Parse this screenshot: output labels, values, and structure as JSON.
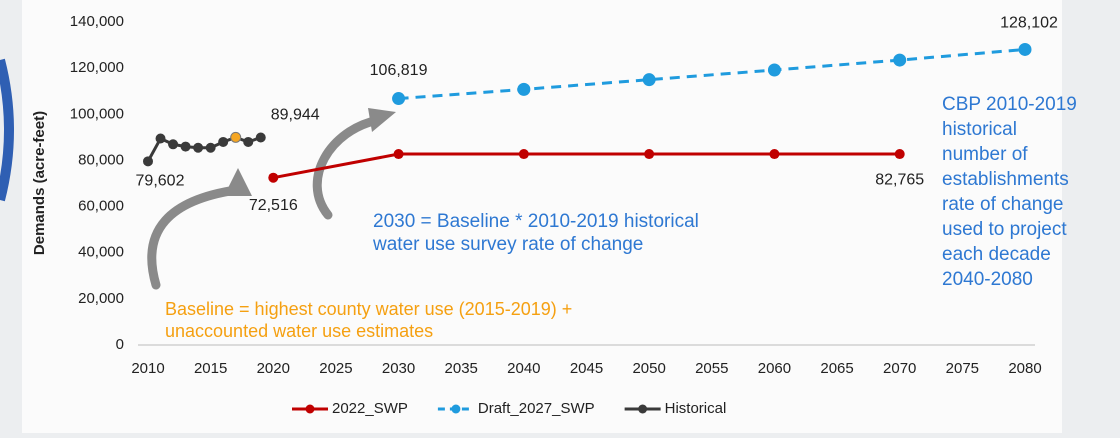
{
  "chart_data": {
    "type": "line",
    "y_label": "Demands (acre-feet)",
    "xlim": [
      2010,
      2080
    ],
    "xticks": [
      2010,
      2015,
      2020,
      2025,
      2030,
      2035,
      2040,
      2045,
      2050,
      2055,
      2060,
      2065,
      2070,
      2075,
      2080
    ],
    "ylim": [
      0,
      140000
    ],
    "yticks": [
      0,
      {
        "value": 20000,
        "label": "20,000"
      },
      {
        "value": 40000,
        "label": "40,000"
      },
      {
        "value": 60000,
        "label": "60,000"
      },
      {
        "value": 80000,
        "label": "80,000"
      },
      {
        "value": 100000,
        "label": "100,000"
      },
      {
        "value": 120000,
        "label": "120,000"
      },
      {
        "value": 140000,
        "label": "140,000"
      }
    ],
    "grid": false,
    "legend": "bottom",
    "series": [
      {
        "name": "2022_SWP",
        "color": "#c00000",
        "dashed": false,
        "x": [
          2020,
          2030,
          2040,
          2050,
          2060,
          2070
        ],
        "values": [
          72516,
          82765,
          82765,
          82765,
          82765,
          82765
        ],
        "value_labels": [
          "72,516",
          null,
          null,
          null,
          null,
          "82,765"
        ]
      },
      {
        "name": "Draft_2027_SWP",
        "color": "#1f9bde",
        "dashed": true,
        "x": [
          2030,
          2040,
          2050,
          2060,
          2070,
          2080
        ],
        "values": [
          106819,
          110800,
          115000,
          119200,
          123500,
          128102
        ],
        "value_labels": [
          "106,819",
          null,
          null,
          null,
          null,
          "128,102"
        ]
      },
      {
        "name": "Historical",
        "color": "#3a3a3a",
        "dashed": false,
        "x": [
          2010,
          2011,
          2012,
          2013,
          2014,
          2015,
          2016,
          2017,
          2018,
          2019
        ],
        "values": [
          79602,
          89500,
          87000,
          86000,
          85500,
          85500,
          88000,
          90000,
          88000,
          89944
        ],
        "value_labels": [
          "79,602",
          null,
          null,
          null,
          null,
          null,
          null,
          null,
          null,
          "89,944"
        ],
        "highlight": {
          "index": 7,
          "color": "#f5a623"
        }
      }
    ],
    "annotations": [
      {
        "lines": [
          "Baseline = highest county water use (2015-2019) +",
          "unaccounted water use estimates"
        ],
        "color": "#f5a011"
      },
      {
        "lines": [
          "2030 = Baseline * 2010-2019 historical",
          "water use survey rate of change"
        ],
        "color": "#2e78d2"
      },
      {
        "lines": [
          "CBP 2010-2019",
          "historical",
          "number of",
          "establishments",
          "rate of change",
          "used to project",
          "each decade",
          "2040-2080"
        ],
        "color": "#2e78d2"
      }
    ]
  }
}
